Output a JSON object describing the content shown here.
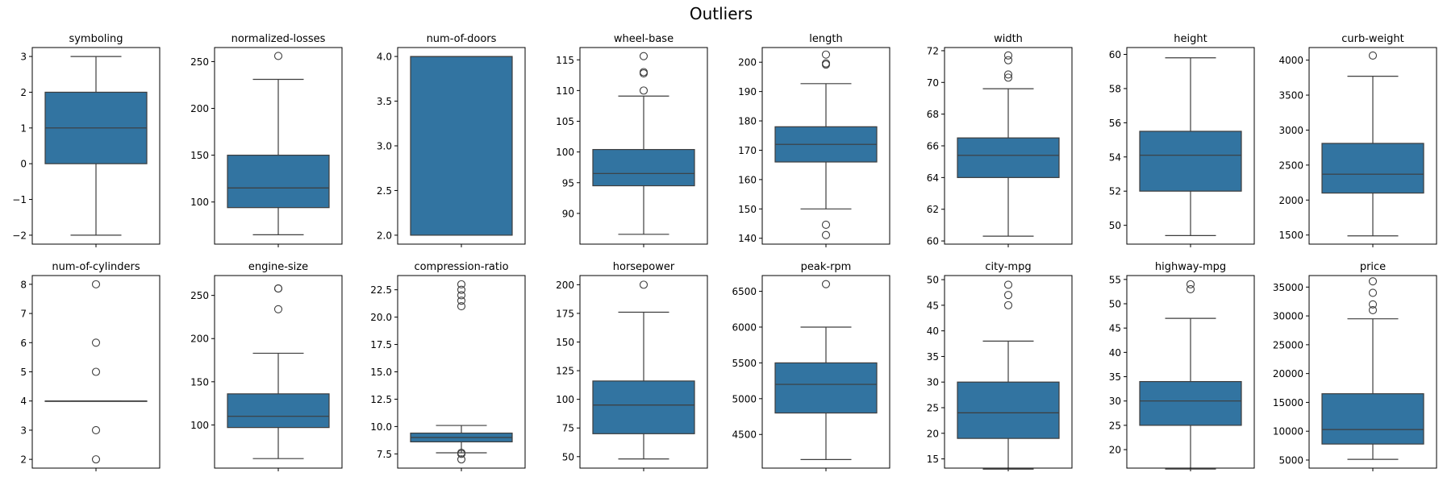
{
  "figure": {
    "title": "Outliers"
  },
  "colors": {
    "box_fill": "#3274a1",
    "line": "#3d3d3d",
    "frame": "#000000",
    "flier_edge": "#3d3d3d"
  },
  "chart_data": [
    {
      "type": "box",
      "title": "symboling",
      "ylim": [
        -2.25,
        3.25
      ],
      "yticks": [
        -2,
        -1,
        0,
        1,
        2,
        3
      ],
      "tick_labels": [
        "−2",
        "−1",
        "0",
        "1",
        "2",
        "3"
      ],
      "q1": 0,
      "median": 1,
      "q3": 2,
      "whisker_low": -2,
      "whisker_high": 3,
      "outliers": []
    },
    {
      "type": "box",
      "title": "normalized-losses",
      "ylim": [
        55,
        265
      ],
      "yticks": [
        100,
        150,
        200,
        250
      ],
      "tick_labels": [
        "100",
        "150",
        "200",
        "250"
      ],
      "q1": 94,
      "median": 115,
      "q3": 150,
      "whisker_low": 65,
      "whisker_high": 231,
      "outliers": [
        256
      ]
    },
    {
      "type": "box",
      "title": "num-of-doors",
      "ylim": [
        1.9,
        4.1
      ],
      "yticks": [
        2.0,
        2.5,
        3.0,
        3.5,
        4.0
      ],
      "tick_labels": [
        "2.0",
        "2.5",
        "3.0",
        "3.5",
        "4.0"
      ],
      "q1": 2,
      "median": 4,
      "q3": 4,
      "whisker_low": 2,
      "whisker_high": 4,
      "outliers": []
    },
    {
      "type": "box",
      "title": "wheel-base",
      "ylim": [
        85,
        117
      ],
      "yticks": [
        90,
        95,
        100,
        105,
        110,
        115
      ],
      "tick_labels": [
        "90",
        "95",
        "100",
        "105",
        "110",
        "115"
      ],
      "q1": 94.5,
      "median": 96.5,
      "q3": 100.4,
      "whisker_low": 86.6,
      "whisker_high": 109.1,
      "outliers": [
        110,
        112.8,
        113,
        115.6
      ]
    },
    {
      "type": "box",
      "title": "length",
      "ylim": [
        138,
        205
      ],
      "yticks": [
        140,
        150,
        160,
        170,
        180,
        190,
        200
      ],
      "tick_labels": [
        "140",
        "150",
        "160",
        "170",
        "180",
        "190",
        "200"
      ],
      "q1": 166,
      "median": 172,
      "q3": 178,
      "whisker_low": 150,
      "whisker_high": 192.7,
      "outliers": [
        141.1,
        144.6,
        199.2,
        199.6,
        202.6
      ]
    },
    {
      "type": "box",
      "title": "width",
      "ylim": [
        59.8,
        72.2
      ],
      "yticks": [
        60,
        62,
        64,
        66,
        68,
        70,
        72
      ],
      "tick_labels": [
        "60",
        "62",
        "64",
        "66",
        "68",
        "70",
        "72"
      ],
      "q1": 64,
      "median": 65.4,
      "q3": 66.5,
      "whisker_low": 60.3,
      "whisker_high": 69.6,
      "outliers": [
        70.3,
        70.5,
        71.4,
        71.7
      ]
    },
    {
      "type": "box",
      "title": "height",
      "ylim": [
        48.9,
        60.4
      ],
      "yticks": [
        50,
        52,
        54,
        56,
        58,
        60
      ],
      "tick_labels": [
        "50",
        "52",
        "54",
        "56",
        "58",
        "60"
      ],
      "q1": 52,
      "median": 54.1,
      "q3": 55.5,
      "whisker_low": 49.4,
      "whisker_high": 59.8,
      "outliers": []
    },
    {
      "type": "box",
      "title": "curb-weight",
      "ylim": [
        1370,
        4180
      ],
      "yticks": [
        1500,
        2000,
        2500,
        3000,
        3500,
        4000
      ],
      "tick_labels": [
        "1500",
        "2000",
        "2500",
        "3000",
        "3500",
        "4000"
      ],
      "q1": 2100,
      "median": 2370,
      "q3": 2810,
      "whisker_low": 1488,
      "whisker_high": 3770,
      "outliers": [
        4066
      ]
    },
    {
      "type": "box",
      "title": "num-of-cylinders",
      "ylim": [
        1.7,
        8.3
      ],
      "yticks": [
        2,
        3,
        4,
        5,
        6,
        7,
        8
      ],
      "tick_labels": [
        "2",
        "3",
        "4",
        "5",
        "6",
        "7",
        "8"
      ],
      "q1": 4,
      "median": 4,
      "q3": 4,
      "whisker_low": 4,
      "whisker_high": 4,
      "outliers": [
        2,
        3,
        5,
        6,
        8
      ]
    },
    {
      "type": "box",
      "title": "engine-size",
      "ylim": [
        50,
        273
      ],
      "yticks": [
        100,
        150,
        200,
        250
      ],
      "tick_labels": [
        "100",
        "150",
        "200",
        "250"
      ],
      "q1": 97,
      "median": 110,
      "q3": 136,
      "whisker_low": 61,
      "whisker_high": 183,
      "outliers": [
        234,
        258,
        258
      ]
    },
    {
      "type": "box",
      "title": "compression-ratio",
      "ylim": [
        6.2,
        23.8
      ],
      "yticks": [
        7.5,
        10.0,
        12.5,
        15.0,
        17.5,
        20.0,
        22.5
      ],
      "tick_labels": [
        "7.5",
        "10.0",
        "12.5",
        "15.0",
        "17.5",
        "20.0",
        "22.5"
      ],
      "q1": 8.6,
      "median": 9,
      "q3": 9.4,
      "whisker_low": 7.6,
      "whisker_high": 10.1,
      "outliers": [
        7,
        7.5,
        7.6,
        21,
        21.5,
        22,
        22.5,
        23
      ]
    },
    {
      "type": "box",
      "title": "horsepower",
      "ylim": [
        40,
        208
      ],
      "yticks": [
        50,
        75,
        100,
        125,
        150,
        175,
        200
      ],
      "tick_labels": [
        "50",
        "75",
        "100",
        "125",
        "150",
        "175",
        "200"
      ],
      "q1": 70,
      "median": 95,
      "q3": 116,
      "whisker_low": 48,
      "whisker_high": 176,
      "outliers": [
        200
      ]
    },
    {
      "type": "box",
      "title": "peak-rpm",
      "ylim": [
        4030,
        6720
      ],
      "yticks": [
        4500,
        5000,
        5500,
        6000,
        6500
      ],
      "tick_labels": [
        "4500",
        "5000",
        "5500",
        "6000",
        "6500"
      ],
      "q1": 4800,
      "median": 5200,
      "q3": 5500,
      "whisker_low": 4150,
      "whisker_high": 6000,
      "outliers": [
        6600
      ]
    },
    {
      "type": "box",
      "title": "city-mpg",
      "ylim": [
        13.2,
        50.8
      ],
      "yticks": [
        15,
        20,
        25,
        30,
        35,
        40,
        45,
        50
      ],
      "tick_labels": [
        "15",
        "20",
        "25",
        "30",
        "35",
        "40",
        "45",
        "50"
      ],
      "q1": 19,
      "median": 24,
      "q3": 30,
      "whisker_low": 13,
      "whisker_high": 38,
      "outliers": [
        45,
        47,
        49
      ]
    },
    {
      "type": "box",
      "title": "highway-mpg",
      "ylim": [
        16.2,
        55.8
      ],
      "yticks": [
        20,
        25,
        30,
        35,
        40,
        45,
        50,
        55
      ],
      "tick_labels": [
        "20",
        "25",
        "30",
        "35",
        "40",
        "45",
        "50",
        "55"
      ],
      "q1": 25,
      "median": 30,
      "q3": 34,
      "whisker_low": 16,
      "whisker_high": 47,
      "outliers": [
        53,
        54
      ]
    },
    {
      "type": "box",
      "title": "price",
      "ylim": [
        3600,
        37000
      ],
      "yticks": [
        5000,
        10000,
        15000,
        20000,
        25000,
        30000,
        35000
      ],
      "tick_labels": [
        "5000",
        "10000",
        "15000",
        "20000",
        "25000",
        "30000",
        "35000"
      ],
      "q1": 7775,
      "median": 10295,
      "q3": 16500,
      "whisker_low": 5118,
      "whisker_high": 29500,
      "outliers": [
        31000,
        32000,
        34000,
        36000
      ]
    }
  ]
}
